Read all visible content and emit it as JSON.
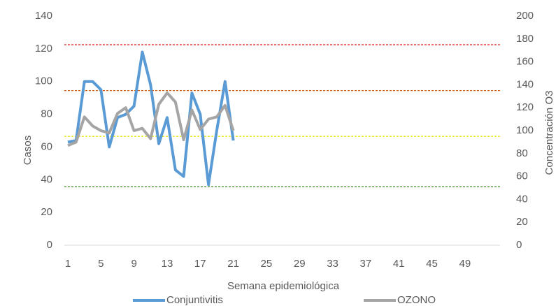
{
  "chart_data": {
    "type": "line",
    "categories": [
      "1",
      null,
      null,
      null,
      "5",
      null,
      null,
      null,
      "9",
      null,
      null,
      null,
      "13",
      null,
      null,
      null,
      "17",
      null,
      null,
      null,
      "21",
      null,
      null,
      null,
      "25",
      null,
      null,
      null,
      "29",
      null,
      null,
      null,
      "33",
      null,
      null,
      null,
      "37",
      null,
      null,
      null,
      "41",
      null,
      null,
      null,
      "45",
      null,
      null,
      null,
      "49",
      null,
      null,
      null
    ],
    "series": [
      {
        "name": "Conjuntivitis",
        "color": "#5b9bd5",
        "values": [
          63,
          64,
          100,
          100,
          95,
          60,
          78,
          80,
          85,
          118,
          98,
          62,
          78,
          46,
          42,
          93,
          80,
          37,
          70,
          100,
          64,
          null,
          null,
          null,
          null,
          null,
          null,
          null,
          null,
          null,
          null,
          null,
          null,
          null,
          null,
          null,
          null,
          null,
          null,
          null,
          null,
          null,
          null,
          null,
          null,
          null,
          null,
          null,
          null,
          null,
          null,
          null
        ]
      },
      {
        "name": "OZONO",
        "color": "#a5a5a5",
        "axis": "y2",
        "values": [
          87,
          90,
          112,
          104,
          100,
          98,
          115,
          120,
          100,
          102,
          93,
          123,
          133,
          125,
          92,
          118,
          101,
          110,
          112,
          122,
          100,
          null,
          null,
          null,
          null,
          null,
          null,
          null,
          null,
          null,
          null,
          null,
          null,
          null,
          null,
          null,
          null,
          null,
          null,
          null,
          null,
          null,
          null,
          null,
          null,
          null,
          null,
          null,
          null,
          null,
          null,
          null
        ]
      }
    ],
    "reference_lines": [
      {
        "value": 175,
        "color": "#e02020",
        "axis": "y2"
      },
      {
        "value": 135,
        "color": "#d05a10",
        "axis": "y2"
      },
      {
        "value": 95,
        "color": "#e8e820",
        "axis": "y2"
      },
      {
        "value": 51,
        "color": "#3a8a20",
        "axis": "y2"
      }
    ],
    "ylim": [
      0,
      140
    ],
    "yticks": [
      0,
      20,
      40,
      60,
      80,
      100,
      120,
      140
    ],
    "y2lim": [
      0,
      200
    ],
    "y2ticks": [
      0,
      20,
      40,
      60,
      80,
      100,
      120,
      140,
      160,
      180,
      200
    ],
    "ylabel": "Casos",
    "y2label": "Concentración O3",
    "xlabel": "Semana epidemiológica",
    "legend": "bottom"
  }
}
